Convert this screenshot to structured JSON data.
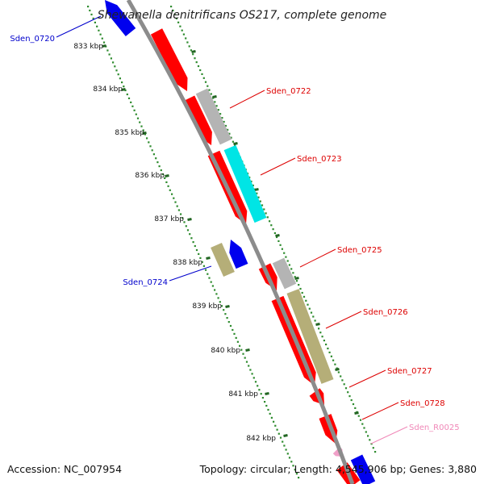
{
  "title": "Shewanella denitrificans OS217, complete genome",
  "footer": {
    "accession": "Accession: NC_007954",
    "summary": "Topology: circular; Length: 4,545,906 bp; Genes: 3,880"
  },
  "colors": {
    "backbone": "#8c8c8c",
    "tick_major": "#226622",
    "tick_minor": "#2e8b2e",
    "cds": "#ff0000",
    "gray": "#b4b4b4",
    "cyan": "#00e5e5",
    "olive": "#b5ae78",
    "blue": "#0000ee",
    "pink": "#f0a0c8",
    "label_red": "#dd0000",
    "label_blue": "#0000cc",
    "label_pink": "#f088b8"
  },
  "kbp_labels": [
    "833 kbp",
    "834 kbp",
    "835 kbp",
    "836 kbp",
    "837 kbp",
    "838 kbp",
    "839 kbp",
    "840 kbp",
    "841 kbp",
    "842 kbp"
  ],
  "gene_labels": [
    {
      "text": "Sden_0720",
      "color": "label_blue"
    },
    {
      "text": "Sden_0722",
      "color": "label_red"
    },
    {
      "text": "Sden_0723",
      "color": "label_red"
    },
    {
      "text": "Sden_0725",
      "color": "label_red"
    },
    {
      "text": "Sden_0724",
      "color": "label_blue"
    },
    {
      "text": "Sden_0726",
      "color": "label_red"
    },
    {
      "text": "Sden_0727",
      "color": "label_red"
    },
    {
      "text": "Sden_0728",
      "color": "label_red"
    },
    {
      "text": "Sden_R0025",
      "color": "label_pink"
    }
  ]
}
